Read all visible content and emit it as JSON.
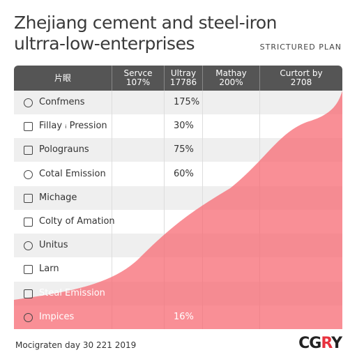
{
  "header": {
    "title_lines": [
      "Zhejiang cement and steel-iron",
      "ultrra-low-enterprises"
    ],
    "tag": "STRICTURED PLAN"
  },
  "table": {
    "columns": [
      {
        "name": "片眼"
      },
      {
        "name": "Servce",
        "sub": "107%"
      },
      {
        "name": "Ultray",
        "sub": "17786"
      },
      {
        "name": "Mathay",
        "sub": "200%"
      },
      {
        "name": "Curtort by",
        "sub": "2708"
      }
    ],
    "rows": [
      {
        "label": "Confmens",
        "value": "175%"
      },
      {
        "label": "Fillay ᵢ Pression",
        "value": "30%"
      },
      {
        "label": "Polograuns",
        "value": "75%"
      },
      {
        "label": "Cotal Emission",
        "value": "60%"
      },
      {
        "label": "Michage"
      },
      {
        "label": "Colty of Amation"
      },
      {
        "label": "Unitus"
      },
      {
        "label": "Larn"
      },
      {
        "label": "Steal Emission"
      },
      {
        "label": "Impices",
        "value": "16%"
      }
    ]
  },
  "footer": {
    "note": "Mocigraten day 30 221 2019",
    "logo": [
      "CG",
      "R",
      "Y"
    ]
  }
}
